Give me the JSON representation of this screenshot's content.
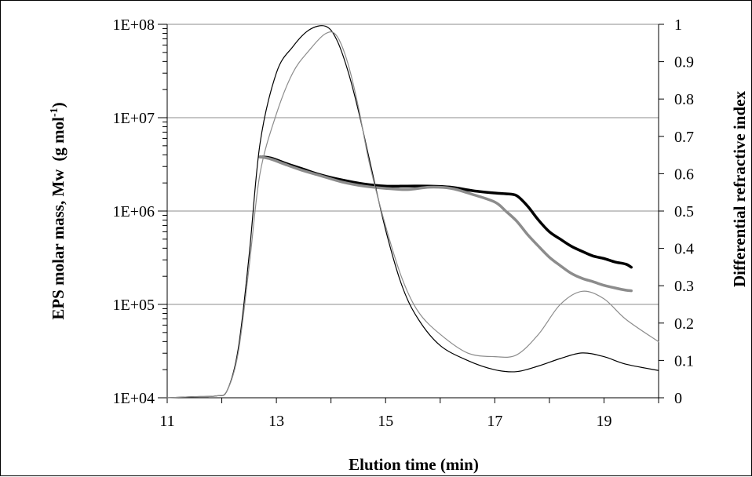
{
  "chart_data": {
    "type": "line",
    "title": "",
    "xlabel": "Elution time (min)",
    "ylabel_left_text": "EPS molar mass, Mw",
    "ylabel_left_unit_prefix": "(g mol",
    "ylabel_left_unit_sup": "-1",
    "ylabel_left_unit_suffix": ")",
    "ylabel_right": "Differential refractive index",
    "xlim": [
      11,
      20
    ],
    "x_ticks": [
      "11",
      "13",
      "15",
      "17",
      "19"
    ],
    "y_left_scale": "log",
    "y_left_lim": [
      10000,
      100000000
    ],
    "y_left_ticks": [
      "1E+04",
      "1E+05",
      "1E+06",
      "1E+07",
      "1E+08"
    ],
    "y_right_lim": [
      0,
      1
    ],
    "y_right_ticks": [
      "0",
      "0.1",
      "0.2",
      "0.3",
      "0.4",
      "0.5",
      "0.6",
      "0.7",
      "0.8",
      "0.9",
      "1"
    ],
    "grid": "horizontal",
    "legend": "none",
    "series": [
      {
        "axis": "left",
        "color": "#000000",
        "x": [
          12.7,
          12.9,
          13.2,
          13.5,
          13.8,
          14.2,
          14.6,
          15.0,
          15.4,
          15.8,
          16.2,
          16.6,
          17.0,
          17.2,
          17.4,
          17.6,
          17.8,
          18.0,
          18.2,
          18.4,
          18.6,
          18.8,
          19.0,
          19.2,
          19.4,
          19.5
        ],
        "y": [
          3800000,
          3700000,
          3200000,
          2800000,
          2450000,
          2150000,
          1950000,
          1850000,
          1850000,
          1850000,
          1800000,
          1650000,
          1560000,
          1530000,
          1460000,
          1130000,
          800000,
          600000,
          500000,
          420000,
          370000,
          330000,
          310000,
          285000,
          270000,
          250000
        ]
      },
      {
        "axis": "left",
        "color": "#8c8c8c",
        "x": [
          12.7,
          12.9,
          13.2,
          13.5,
          13.8,
          14.2,
          14.6,
          15.0,
          15.4,
          15.8,
          16.2,
          16.6,
          17.0,
          17.2,
          17.4,
          17.6,
          17.8,
          18.0,
          18.2,
          18.4,
          18.6,
          18.8,
          19.0,
          19.2,
          19.4,
          19.5
        ],
        "y": [
          3800000,
          3600000,
          3100000,
          2700000,
          2400000,
          2050000,
          1850000,
          1750000,
          1700000,
          1800000,
          1750000,
          1500000,
          1250000,
          1000000,
          780000,
          560000,
          420000,
          320000,
          260000,
          215000,
          190000,
          175000,
          160000,
          150000,
          142000,
          140000
        ]
      },
      {
        "axis": "right",
        "color": "#000000",
        "x": [
          11.0,
          11.5,
          11.9,
          12.1,
          12.3,
          12.5,
          12.7,
          13.0,
          13.3,
          13.6,
          13.9,
          14.1,
          14.3,
          14.5,
          14.7,
          15.0,
          15.3,
          15.6,
          16.0,
          16.5,
          17.0,
          17.4,
          17.8,
          18.2,
          18.6,
          19.0,
          19.4,
          20.0
        ],
        "y": [
          0.0,
          0.003,
          0.005,
          0.02,
          0.13,
          0.38,
          0.68,
          0.87,
          0.94,
          0.985,
          0.995,
          0.96,
          0.88,
          0.77,
          0.64,
          0.45,
          0.3,
          0.21,
          0.14,
          0.1,
          0.075,
          0.07,
          0.085,
          0.105,
          0.12,
          0.11,
          0.09,
          0.073
        ]
      },
      {
        "axis": "right",
        "color": "#8c8c8c",
        "x": [
          11.0,
          11.5,
          11.9,
          12.1,
          12.3,
          12.5,
          12.7,
          13.0,
          13.3,
          13.6,
          13.9,
          14.1,
          14.3,
          14.5,
          14.7,
          15.0,
          15.3,
          15.6,
          16.0,
          16.5,
          17.0,
          17.4,
          17.8,
          18.2,
          18.6,
          19.0,
          19.4,
          20.0
        ],
        "y": [
          0.0,
          0.003,
          0.005,
          0.02,
          0.12,
          0.35,
          0.6,
          0.76,
          0.87,
          0.93,
          0.975,
          0.97,
          0.9,
          0.78,
          0.63,
          0.46,
          0.32,
          0.23,
          0.17,
          0.12,
          0.11,
          0.115,
          0.17,
          0.25,
          0.285,
          0.265,
          0.21,
          0.15
        ]
      }
    ]
  }
}
